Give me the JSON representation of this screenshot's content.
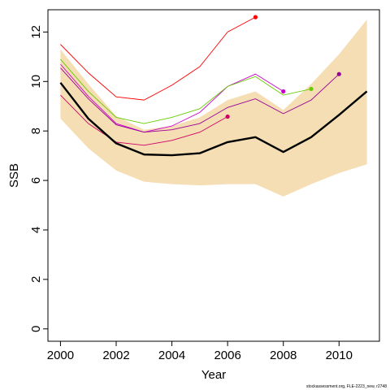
{
  "chart_data": {
    "type": "line",
    "xlabel": "Year",
    "ylabel": "SSB",
    "xlim": [
      1999.55,
      2011.45
    ],
    "ylim": [
      -0.5,
      12.9
    ],
    "x_ticks": [
      2000,
      2002,
      2004,
      2006,
      2008,
      2010
    ],
    "y_ticks": [
      0,
      2,
      4,
      6,
      8,
      10,
      12
    ],
    "grid": false,
    "legend": "none",
    "band": {
      "color": "#f5deb3",
      "x": [
        2000,
        2001,
        2002,
        2003,
        2004,
        2005,
        2006,
        2007,
        2008,
        2009,
        2010,
        2011
      ],
      "lower": [
        8.5,
        7.3,
        6.4,
        5.95,
        5.85,
        5.8,
        5.85,
        5.85,
        5.35,
        5.85,
        6.3,
        6.65
      ],
      "upper": [
        11.3,
        9.9,
        8.6,
        8.05,
        8.2,
        8.55,
        9.25,
        9.6,
        8.85,
        9.9,
        11.1,
        12.5
      ]
    },
    "main_series": {
      "color": "#000000",
      "x": [
        2000,
        2001,
        2002,
        2003,
        2004,
        2005,
        2006,
        2007,
        2008,
        2009,
        2010,
        2011
      ],
      "values": [
        9.95,
        8.5,
        7.5,
        7.05,
        7.02,
        7.1,
        7.55,
        7.75,
        7.15,
        7.75,
        8.65,
        9.6
      ]
    },
    "retro_series": [
      {
        "color": "#ff0000",
        "x": [
          2000,
          2001,
          2002,
          2003,
          2004,
          2005,
          2006,
          2007
        ],
        "values": [
          11.5,
          10.35,
          9.38,
          9.25,
          9.85,
          10.6,
          12.0,
          12.6
        ],
        "endpoint": true
      },
      {
        "color": "#cc00cc",
        "x": [
          2000,
          2001,
          2002,
          2003,
          2004,
          2005,
          2006,
          2007,
          2008
        ],
        "values": [
          10.7,
          9.4,
          8.3,
          7.95,
          8.2,
          8.75,
          9.8,
          10.3,
          9.6
        ],
        "endpoint": true
      },
      {
        "color": "#66cc00",
        "x": [
          2000,
          2001,
          2002,
          2003,
          2004,
          2005,
          2006,
          2007,
          2008,
          2009
        ],
        "values": [
          10.9,
          9.6,
          8.55,
          8.3,
          8.55,
          8.9,
          9.8,
          10.2,
          9.45,
          9.7
        ],
        "endpoint": true
      },
      {
        "color": "#990099",
        "x": [
          2000,
          2001,
          2002,
          2003,
          2004,
          2005,
          2006,
          2007,
          2008,
          2009,
          2010
        ],
        "values": [
          10.55,
          9.3,
          8.25,
          7.95,
          8.05,
          8.3,
          8.95,
          9.3,
          8.7,
          9.25,
          10.3
        ],
        "endpoint": true
      },
      {
        "color": "#cc0066",
        "x": [
          2000,
          2001,
          2002,
          2003,
          2004,
          2005,
          2006
        ],
        "values": [
          9.45,
          8.3,
          7.55,
          7.42,
          7.62,
          7.95,
          8.58
        ],
        "endpoint": true
      }
    ],
    "footnote": "stockassessment.org, FLE-2223_new, r2748"
  }
}
